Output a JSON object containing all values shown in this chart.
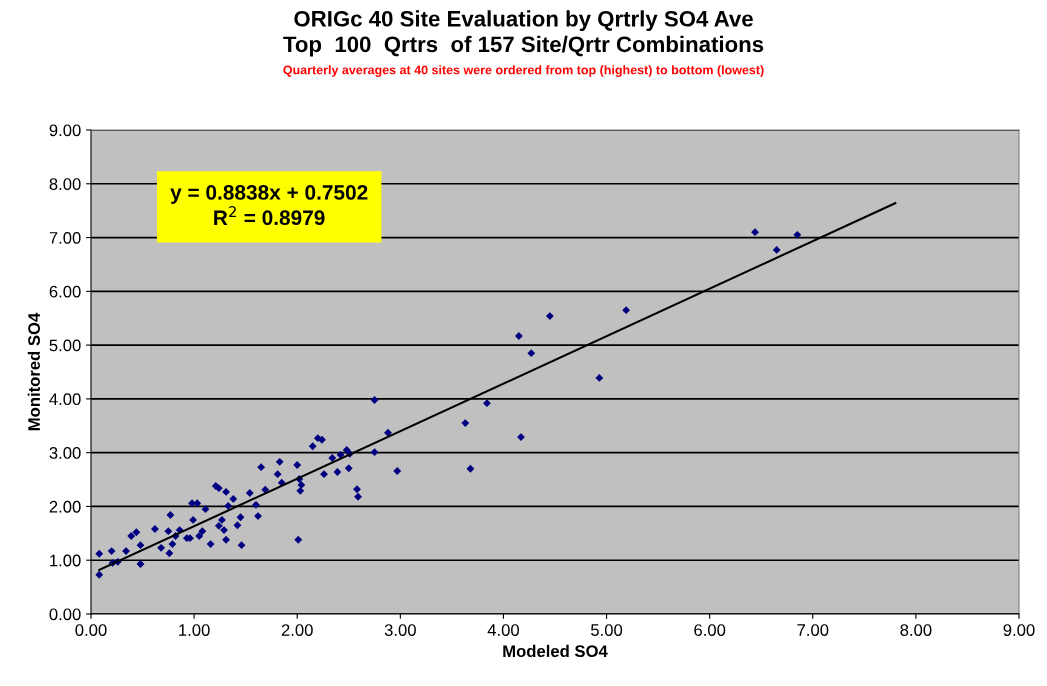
{
  "chart_data": {
    "type": "scatter",
    "title": "ORIGc 40 Site Evaluation by Qrtrly SO4 Ave\nTop  100  Qrtrs  of 157 Site/Qrtr Combinations",
    "subtitle": "Quarterly averages at 40 sites were ordered from top (highest) to bottom (lowest)",
    "xlabel": "Modeled SO4",
    "ylabel": "Monitored SO4",
    "annotations": [
      "y = 0.8838x + 0.7502\nR$^{2}$ = 0.8979"
    ],
    "series": [
      {
        "color": "#000080",
        "marker": "diamond",
        "x": [
          0.08,
          0.08,
          0.2,
          0.21,
          0.26,
          0.34,
          0.39,
          0.44,
          0.48,
          0.48,
          0.62,
          0.68,
          0.75,
          0.77,
          0.76,
          0.79,
          0.82,
          0.86,
          0.93,
          0.96,
          0.99,
          0.98,
          1.03,
          1.05,
          1.08,
          1.11,
          1.16,
          1.21,
          1.24,
          1.31,
          1.24,
          1.27,
          1.29,
          1.31,
          1.33,
          1.38,
          1.42,
          1.45,
          1.46,
          1.54,
          1.6,
          1.62,
          1.65,
          1.69,
          1.81,
          1.83,
          1.85,
          2.0,
          2.02,
          2.03,
          2.04,
          2.01,
          2.15,
          2.2,
          2.24,
          2.26,
          2.34,
          2.39,
          2.42,
          2.48,
          2.5,
          2.51,
          2.58,
          2.59,
          2.75,
          2.75,
          2.88,
          2.97,
          3.63,
          3.68,
          3.84,
          4.15,
          4.17,
          4.27,
          4.45,
          4.93,
          5.19,
          6.44,
          6.65,
          6.85
        ],
        "values": [
          0.73,
          1.12,
          1.17,
          0.95,
          0.97,
          1.17,
          1.45,
          1.52,
          0.93,
          1.28,
          1.58,
          1.23,
          1.54,
          1.84,
          1.13,
          1.3,
          1.45,
          1.56,
          1.41,
          1.41,
          1.75,
          2.06,
          2.06,
          1.45,
          1.54,
          1.95,
          1.3,
          2.38,
          2.34,
          2.27,
          1.64,
          1.75,
          1.56,
          1.38,
          2.01,
          2.14,
          1.65,
          1.8,
          1.28,
          2.25,
          2.03,
          1.82,
          2.73,
          2.31,
          2.6,
          2.83,
          2.44,
          2.77,
          2.51,
          2.29,
          2.4,
          1.38,
          3.12,
          3.27,
          3.24,
          2.6,
          2.9,
          2.64,
          2.96,
          3.05,
          2.71,
          2.98,
          2.32,
          2.18,
          3.98,
          3.01,
          3.37,
          2.66,
          3.55,
          2.7,
          3.92,
          5.17,
          3.29,
          4.85,
          5.54,
          4.39,
          5.65,
          7.1,
          6.77,
          7.05
        ]
      },
      {
        "type": "line",
        "color": "#000000",
        "marker": "none",
        "x": [
          0.08,
          7.8
        ],
        "values": [
          0.82,
          7.64
        ]
      }
    ],
    "xlim": [
      0,
      9
    ],
    "ylim": [
      0,
      9
    ],
    "xticks": [
      {
        "value": 0,
        "label": "0.00"
      },
      {
        "value": 1,
        "label": "1.00"
      },
      {
        "value": 2,
        "label": "2.00"
      },
      {
        "value": 3,
        "label": "3.00"
      },
      {
        "value": 4,
        "label": "4.00"
      },
      {
        "value": 5,
        "label": "5.00"
      },
      {
        "value": 6,
        "label": "6.00"
      },
      {
        "value": 7,
        "label": "7.00"
      },
      {
        "value": 8,
        "label": "8.00"
      },
      {
        "value": 9,
        "label": "9.00"
      }
    ],
    "yticks": [
      {
        "value": 0,
        "label": "0.00"
      },
      {
        "value": 1,
        "label": "1.00"
      },
      {
        "value": 2,
        "label": "2.00"
      },
      {
        "value": 3,
        "label": "3.00"
      },
      {
        "value": 4,
        "label": "4.00"
      },
      {
        "value": 5,
        "label": "5.00"
      },
      {
        "value": 6,
        "label": "6.00"
      },
      {
        "value": 7,
        "label": "7.00"
      },
      {
        "value": 8,
        "label": "8.00"
      },
      {
        "value": 9,
        "label": "9.00"
      }
    ],
    "grid": "y",
    "legend": false
  }
}
